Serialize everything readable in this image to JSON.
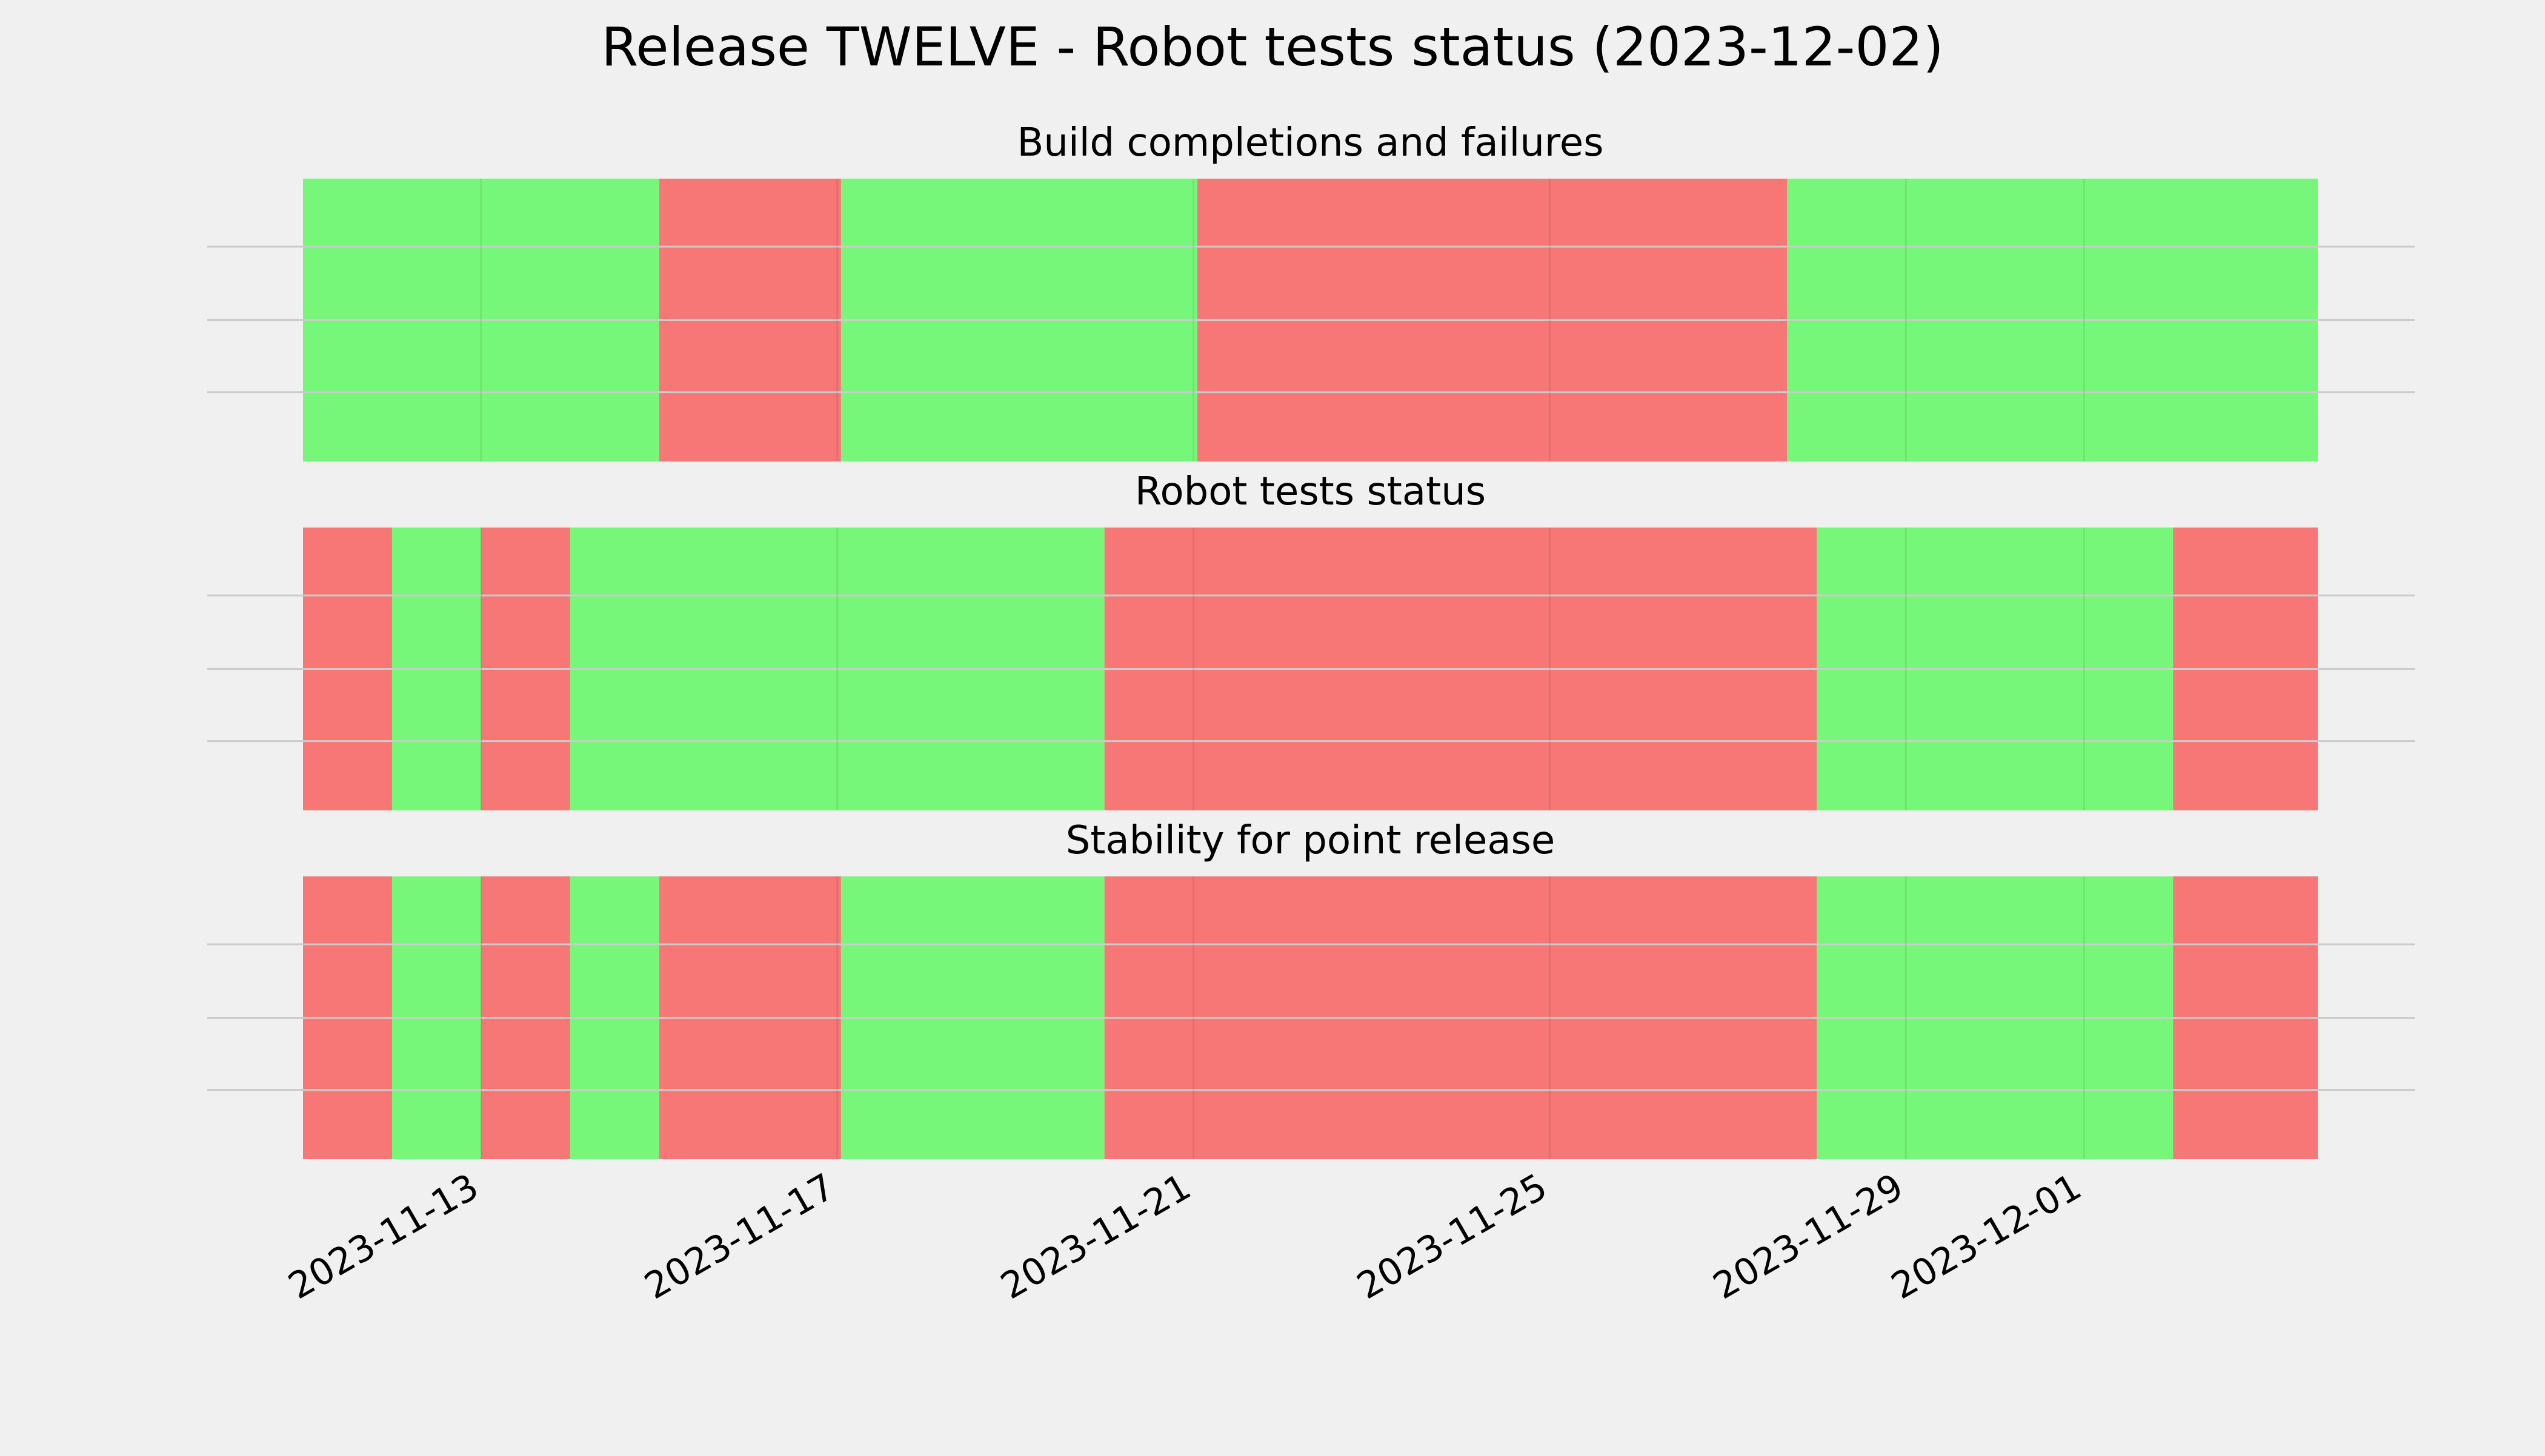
{
  "title": "Release TWELVE - Robot tests status (2023-12-02)",
  "colors": {
    "background": "#f0f0f0",
    "pass": "#77f77a",
    "fail": "#f77777",
    "grid": "#cbcbcb"
  },
  "chart_data": [
    {
      "type": "timeline",
      "title": "Build completions and failures",
      "x_range": [
        "2023-11-11",
        "2023-12-03 15:00"
      ],
      "grid": true,
      "segments": [
        {
          "start": "2023-11-11",
          "end": "2023-11-15",
          "status": "pass"
        },
        {
          "start": "2023-11-15",
          "end": "2023-11-17 01:00",
          "status": "fail"
        },
        {
          "start": "2023-11-17 01:00",
          "end": "2023-11-21 01:00",
          "status": "pass"
        },
        {
          "start": "2023-11-21 01:00",
          "end": "2023-11-27 16:00",
          "status": "fail"
        },
        {
          "start": "2023-11-27 16:00",
          "end": "2023-12-03 15:00",
          "status": "pass"
        }
      ],
      "x_ticks": [
        "2023-11-13",
        "2023-11-17",
        "2023-11-21",
        "2023-11-25",
        "2023-11-29",
        "2023-12-01"
      ]
    },
    {
      "type": "timeline",
      "title": "Robot tests status",
      "x_range": [
        "2023-11-11",
        "2023-12-03 15:00"
      ],
      "grid": true,
      "segments": [
        {
          "start": "2023-11-11",
          "end": "2023-11-12",
          "status": "fail"
        },
        {
          "start": "2023-11-12",
          "end": "2023-11-13",
          "status": "pass"
        },
        {
          "start": "2023-11-13",
          "end": "2023-11-14",
          "status": "fail"
        },
        {
          "start": "2023-11-14",
          "end": "2023-11-20",
          "status": "pass"
        },
        {
          "start": "2023-11-20",
          "end": "2023-11-28",
          "status": "fail"
        },
        {
          "start": "2023-11-28",
          "end": "2023-12-02",
          "status": "pass"
        },
        {
          "start": "2023-12-02",
          "end": "2023-12-03 15:00",
          "status": "fail"
        }
      ],
      "x_ticks": [
        "2023-11-13",
        "2023-11-17",
        "2023-11-21",
        "2023-11-25",
        "2023-11-29",
        "2023-12-01"
      ]
    },
    {
      "type": "timeline",
      "title": "Stability for point release",
      "x_range": [
        "2023-11-11",
        "2023-12-03 15:00"
      ],
      "grid": true,
      "segments": [
        {
          "start": "2023-11-11",
          "end": "2023-11-12",
          "status": "fail"
        },
        {
          "start": "2023-11-12",
          "end": "2023-11-13",
          "status": "pass"
        },
        {
          "start": "2023-11-13",
          "end": "2023-11-14",
          "status": "fail"
        },
        {
          "start": "2023-11-14",
          "end": "2023-11-15",
          "status": "pass"
        },
        {
          "start": "2023-11-15",
          "end": "2023-11-17 01:00",
          "status": "fail"
        },
        {
          "start": "2023-11-17 01:00",
          "end": "2023-11-20",
          "status": "pass"
        },
        {
          "start": "2023-11-20",
          "end": "2023-11-28",
          "status": "fail"
        },
        {
          "start": "2023-11-28",
          "end": "2023-12-02",
          "status": "pass"
        },
        {
          "start": "2023-12-02",
          "end": "2023-12-03 15:00",
          "status": "fail"
        }
      ],
      "x_ticks": [
        "2023-11-13",
        "2023-11-17",
        "2023-11-21",
        "2023-11-25",
        "2023-11-29",
        "2023-12-01"
      ]
    }
  ]
}
